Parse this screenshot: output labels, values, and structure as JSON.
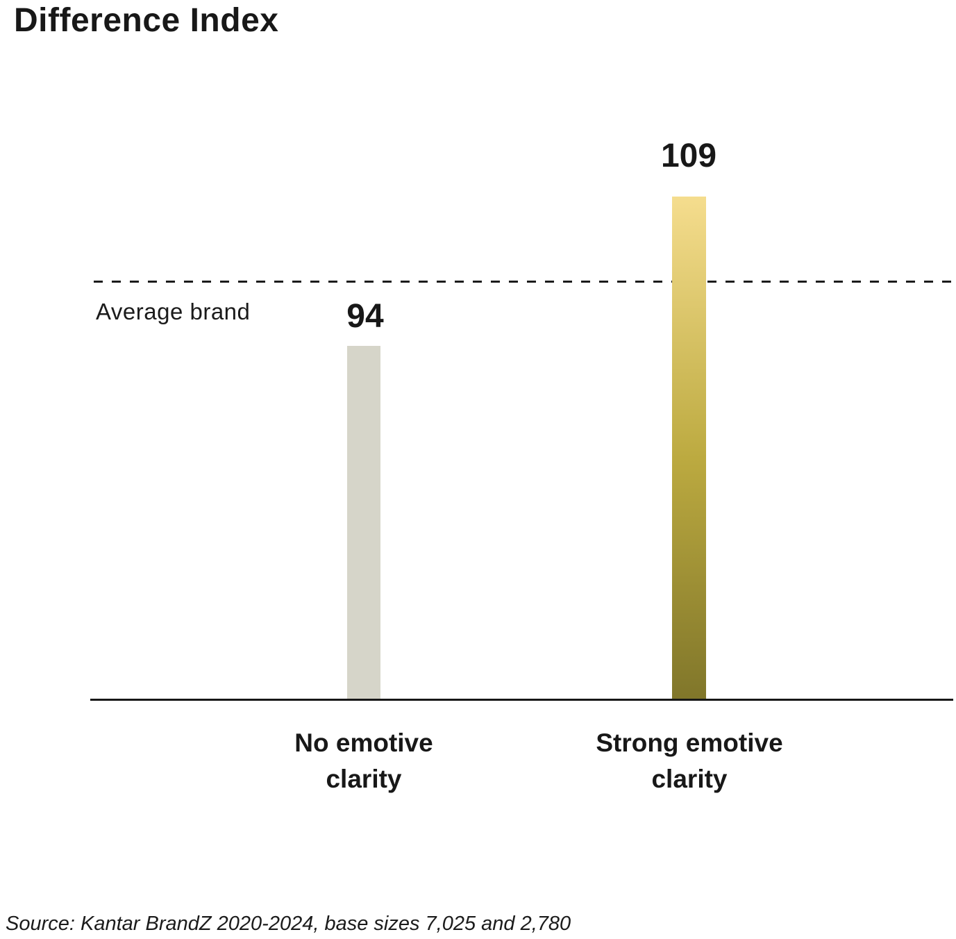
{
  "chart_data": {
    "type": "bar",
    "title": "Difference Index",
    "categories": [
      "No emotive clarity",
      "Strong emotive clarity"
    ],
    "values": [
      94,
      109
    ],
    "reference_line": {
      "label": "Average brand",
      "value": 100,
      "style": "dashed"
    },
    "source": "Source: Kantar BrandZ 2020-2024, base sizes 7,025 and 2,780",
    "xlabel": "",
    "ylabel": "",
    "ylim": [
      58,
      112
    ],
    "grid": false,
    "legend": false,
    "colors": {
      "bar_no_emotive": "#d6d5c9",
      "bar_strong_gradient_top": "#f5dd8e",
      "bar_strong_gradient_mid": "#bcaa40",
      "bar_strong_gradient_bottom": "#80762a",
      "text": "#181818",
      "axis": "#181818"
    }
  }
}
